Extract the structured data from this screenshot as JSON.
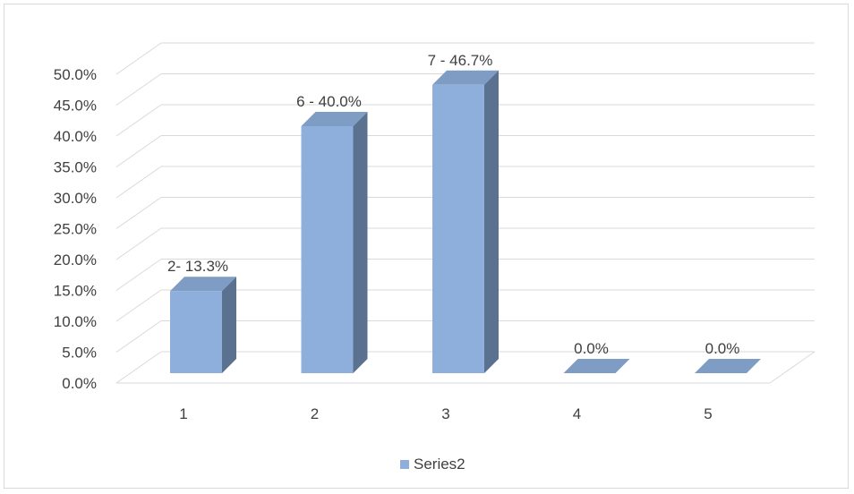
{
  "chart_data": {
    "type": "bar",
    "three_d": true,
    "categories": [
      "1",
      "2",
      "3",
      "4",
      "5"
    ],
    "series": [
      {
        "name": "Series2",
        "values": [
          13.3,
          40.0,
          46.7,
          0.0,
          0.0
        ],
        "data_labels": [
          "2- 13.3%",
          "6 - 40.0%",
          "7 - 46.7%",
          "0.0%",
          "0.0%"
        ]
      }
    ],
    "y_ticks": [
      "0.0%",
      "5.0%",
      "10.0%",
      "15.0%",
      "20.0%",
      "25.0%",
      "30.0%",
      "35.0%",
      "40.0%",
      "45.0%",
      "50.0%"
    ],
    "ylim": [
      0,
      50
    ],
    "title": "",
    "xlabel": "",
    "ylabel": "",
    "grid": true,
    "legend_position": "bottom",
    "colors": {
      "bar_front": "#8eaedb",
      "bar_side": "#5b7190",
      "bar_top": "#7f9dc4",
      "grid": "#d9d9d9",
      "text": "#404040"
    }
  }
}
